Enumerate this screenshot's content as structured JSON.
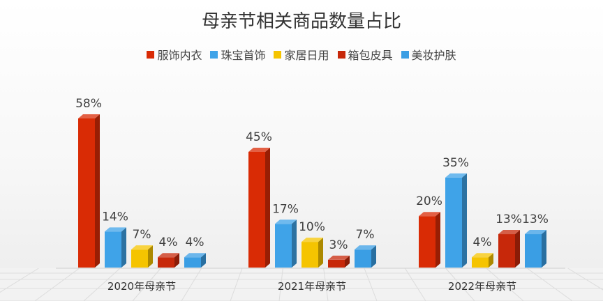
{
  "chart_data": {
    "type": "bar",
    "title": "母亲节相关商品数量占比",
    "categories": [
      "2020年母亲节",
      "2021年母亲节",
      "2022年母亲节"
    ],
    "series": [
      {
        "name": "服饰内衣",
        "values": [
          58,
          45,
          20
        ],
        "labels": [
          "58%",
          "45%",
          "20%"
        ],
        "color": "#d92b05"
      },
      {
        "name": "珠宝首饰",
        "values": [
          14,
          17,
          35
        ],
        "labels": [
          "14%",
          "17%",
          "35%"
        ],
        "color": "#3fa3e8"
      },
      {
        "name": "家居日用",
        "values": [
          7,
          10,
          4
        ],
        "labels": [
          "7%",
          "10%",
          "4%"
        ],
        "color": "#f5c400"
      },
      {
        "name": "箱包皮具",
        "values": [
          4,
          3,
          13
        ],
        "labels": [
          "4%",
          "3%",
          "13%"
        ],
        "color": "#c7280a"
      },
      {
        "name": "美妆护肤",
        "values": [
          4,
          7,
          13
        ],
        "labels": [
          "4%",
          "7%",
          "13%"
        ],
        "color": "#3a9ee4"
      }
    ],
    "ylim": [
      0,
      60
    ],
    "grid": false,
    "legend": "top-center",
    "style": "3d-column"
  }
}
